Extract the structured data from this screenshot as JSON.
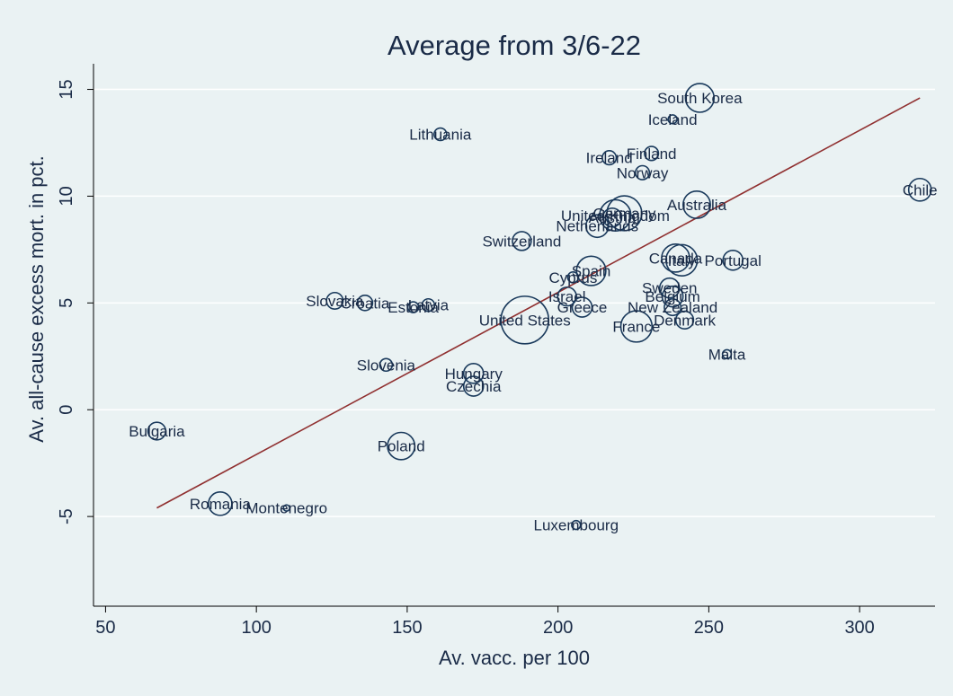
{
  "chart_data": {
    "type": "scatter",
    "title": "Average from 3/6-22",
    "xlabel": "Av. vacc. per 100",
    "ylabel": "Av. all-cause excess mort. in pct.",
    "xlim": [
      46,
      325
    ],
    "ylim": [
      -9.2,
      16.2
    ],
    "xticks": [
      50,
      100,
      150,
      200,
      250,
      300
    ],
    "yticks": [
      -5,
      0,
      5,
      10,
      15
    ],
    "grid": "horizontal",
    "fit_line": {
      "x": [
        67,
        320
      ],
      "y": [
        -4.6,
        14.6
      ]
    },
    "points": [
      {
        "label": "South Korea",
        "x": 247,
        "y": 14.6,
        "size": 2.1
      },
      {
        "label": "Iceland",
        "x": 238,
        "y": 13.6,
        "size": 0.2
      },
      {
        "label": "Lithuania",
        "x": 161,
        "y": 12.9,
        "size": 0.4
      },
      {
        "label": "Finland",
        "x": 231,
        "y": 12.0,
        "size": 0.5
      },
      {
        "label": "Ireland",
        "x": 217,
        "y": 11.8,
        "size": 0.5
      },
      {
        "label": "Norway",
        "x": 228,
        "y": 11.1,
        "size": 0.5
      },
      {
        "label": "Chile",
        "x": 320,
        "y": 10.3,
        "size": 1.3
      },
      {
        "label": "Australia",
        "x": 246,
        "y": 9.6,
        "size": 1.9
      },
      {
        "label": "Germany",
        "x": 222,
        "y": 9.2,
        "size": 3.1
      },
      {
        "label": "United Kingdom",
        "x": 219,
        "y": 9.1,
        "size": 2.5
      },
      {
        "label": "Austria",
        "x": 218,
        "y": 9.0,
        "size": 0.9
      },
      {
        "label": "Netherlands",
        "x": 213,
        "y": 8.6,
        "size": 1.3
      },
      {
        "label": "Switzerland",
        "x": 188,
        "y": 7.9,
        "size": 0.9
      },
      {
        "label": "Canada",
        "x": 239,
        "y": 7.1,
        "size": 2.0
      },
      {
        "label": "Italy",
        "x": 241,
        "y": 7.0,
        "size": 2.5
      },
      {
        "label": "Portugal",
        "x": 258,
        "y": 7.0,
        "size": 1.0
      },
      {
        "label": "Spain",
        "x": 211,
        "y": 6.5,
        "size": 2.2
      },
      {
        "label": "Cyprus",
        "x": 205,
        "y": 6.2,
        "size": 0.3
      },
      {
        "label": "Sweden",
        "x": 237,
        "y": 5.7,
        "size": 1.0
      },
      {
        "label": "Belgium",
        "x": 238,
        "y": 5.3,
        "size": 1.1
      },
      {
        "label": "Israel",
        "x": 203,
        "y": 5.3,
        "size": 0.9
      },
      {
        "label": "Slovakia",
        "x": 126,
        "y": 5.1,
        "size": 0.7
      },
      {
        "label": "Croatia",
        "x": 136,
        "y": 5.0,
        "size": 0.6
      },
      {
        "label": "Latvia",
        "x": 157,
        "y": 4.9,
        "size": 0.4
      },
      {
        "label": "Estonia",
        "x": 152,
        "y": 4.8,
        "size": 0.3
      },
      {
        "label": "New Zealand",
        "x": 238,
        "y": 4.8,
        "size": 0.7
      },
      {
        "label": "Greece",
        "x": 208,
        "y": 4.8,
        "size": 1.0
      },
      {
        "label": "United States",
        "x": 189,
        "y": 4.2,
        "size": 5.8
      },
      {
        "label": "Denmark",
        "x": 242,
        "y": 4.2,
        "size": 0.8
      },
      {
        "label": "France",
        "x": 226,
        "y": 3.9,
        "size": 2.5
      },
      {
        "label": "Malta",
        "x": 256,
        "y": 2.6,
        "size": 0.2
      },
      {
        "label": "Slovenia",
        "x": 143,
        "y": 2.1,
        "size": 0.4
      },
      {
        "label": "Hungary",
        "x": 172,
        "y": 1.7,
        "size": 1.0
      },
      {
        "label": "Czechia",
        "x": 172,
        "y": 1.1,
        "size": 1.0
      },
      {
        "label": "Bulgaria",
        "x": 67,
        "y": -1.0,
        "size": 0.8
      },
      {
        "label": "Poland",
        "x": 148,
        "y": -1.7,
        "size": 1.9
      },
      {
        "label": "Romania",
        "x": 88,
        "y": -4.4,
        "size": 1.4
      },
      {
        "label": "Montenegro",
        "x": 110,
        "y": -4.6,
        "size": 0.1
      },
      {
        "label": "Luxembourg",
        "x": 206,
        "y": -5.4,
        "size": 0.2
      }
    ]
  }
}
